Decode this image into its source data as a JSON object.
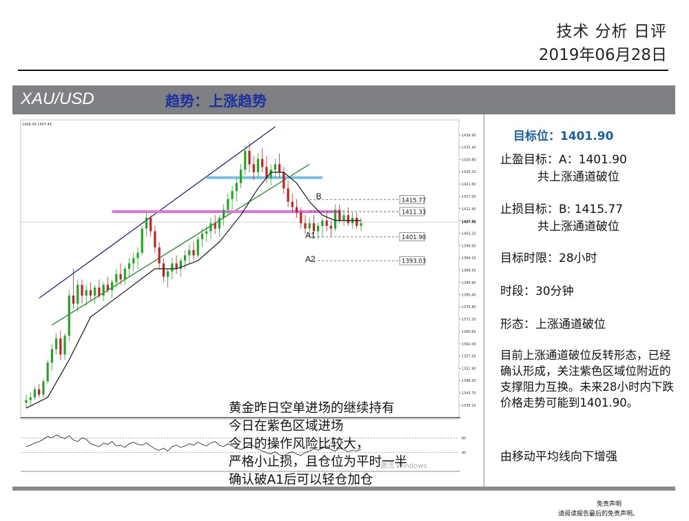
{
  "header": {
    "title": "技术 分析 日评",
    "date": "2019年06月28日"
  },
  "band": {
    "symbol": "XAU/USD",
    "trend": "趋势：上涨趋势"
  },
  "chart_data": {
    "type": "line",
    "symbol": "XAU/USD",
    "timeframe": "30分钟",
    "info_text": "1406.09 1407.45",
    "ylim": [
      1336,
      1444
    ],
    "y_ticks": [
      "1439.90",
      "1435.40",
      "1430.80",
      "1426.20",
      "1421.60",
      "1417.00",
      "1412.40",
      "1407.80",
      "1403.20",
      "1398.60",
      "1394.10",
      "1389.50",
      "1384.90",
      "1380.40",
      "1375.80",
      "1371.20",
      "1366.60",
      "1362.00",
      "1357.50",
      "1352.90",
      "1348.30",
      "1343.70",
      "1339.10"
    ],
    "current_price_label": "1407.45",
    "candles": [
      [
        0,
        1340,
        1343,
        1338,
        1341
      ],
      [
        1,
        1341,
        1344,
        1339,
        1342
      ],
      [
        2,
        1342,
        1346,
        1341,
        1345
      ],
      [
        3,
        1345,
        1347,
        1342,
        1343
      ],
      [
        4,
        1343,
        1349,
        1342,
        1348
      ],
      [
        5,
        1348,
        1356,
        1347,
        1355
      ],
      [
        6,
        1355,
        1362,
        1352,
        1360
      ],
      [
        7,
        1360,
        1366,
        1358,
        1364
      ],
      [
        8,
        1364,
        1367,
        1356,
        1358
      ],
      [
        9,
        1358,
        1366,
        1356,
        1365
      ],
      [
        10,
        1365,
        1382,
        1363,
        1380
      ],
      [
        11,
        1380,
        1390,
        1375,
        1377
      ],
      [
        12,
        1377,
        1386,
        1374,
        1384
      ],
      [
        13,
        1384,
        1386,
        1377,
        1380
      ],
      [
        14,
        1380,
        1384,
        1376,
        1382
      ],
      [
        15,
        1382,
        1385,
        1378,
        1380
      ],
      [
        16,
        1380,
        1384,
        1377,
        1383
      ],
      [
        17,
        1383,
        1386,
        1379,
        1380
      ],
      [
        18,
        1380,
        1385,
        1378,
        1384
      ],
      [
        19,
        1384,
        1387,
        1381,
        1382
      ],
      [
        20,
        1382,
        1386,
        1379,
        1385
      ],
      [
        21,
        1385,
        1390,
        1383,
        1388
      ],
      [
        22,
        1388,
        1392,
        1384,
        1386
      ],
      [
        23,
        1386,
        1391,
        1384,
        1390
      ],
      [
        24,
        1390,
        1394,
        1387,
        1392
      ],
      [
        25,
        1392,
        1396,
        1389,
        1394
      ],
      [
        26,
        1394,
        1398,
        1390,
        1396
      ],
      [
        27,
        1396,
        1406,
        1395,
        1405
      ],
      [
        28,
        1405,
        1411,
        1402,
        1409
      ],
      [
        29,
        1409,
        1410,
        1402,
        1404
      ],
      [
        30,
        1404,
        1406,
        1396,
        1398
      ],
      [
        31,
        1398,
        1400,
        1390,
        1392
      ],
      [
        32,
        1392,
        1394,
        1385,
        1387
      ],
      [
        33,
        1387,
        1390,
        1383,
        1389
      ],
      [
        34,
        1389,
        1394,
        1386,
        1392
      ],
      [
        35,
        1392,
        1395,
        1388,
        1390
      ],
      [
        36,
        1390,
        1394,
        1387,
        1393
      ],
      [
        37,
        1393,
        1397,
        1390,
        1395
      ],
      [
        38,
        1395,
        1399,
        1392,
        1397
      ],
      [
        39,
        1397,
        1400,
        1393,
        1395
      ],
      [
        40,
        1395,
        1402,
        1394,
        1401
      ],
      [
        41,
        1401,
        1405,
        1398,
        1403
      ],
      [
        42,
        1403,
        1406,
        1400,
        1404
      ],
      [
        43,
        1404,
        1409,
        1401,
        1407
      ],
      [
        44,
        1407,
        1410,
        1403,
        1405
      ],
      [
        45,
        1405,
        1410,
        1402,
        1409
      ],
      [
        46,
        1409,
        1414,
        1406,
        1412
      ],
      [
        47,
        1412,
        1418,
        1410,
        1416
      ],
      [
        48,
        1416,
        1421,
        1412,
        1419
      ],
      [
        49,
        1419,
        1424,
        1415,
        1422
      ],
      [
        50,
        1422,
        1429,
        1420,
        1427
      ],
      [
        51,
        1427,
        1436,
        1425,
        1434
      ],
      [
        52,
        1434,
        1437,
        1426,
        1429
      ],
      [
        53,
        1429,
        1432,
        1423,
        1426
      ],
      [
        54,
        1426,
        1433,
        1424,
        1431
      ],
      [
        55,
        1431,
        1435,
        1426,
        1428
      ],
      [
        56,
        1428,
        1432,
        1422,
        1424
      ],
      [
        57,
        1424,
        1429,
        1421,
        1427
      ],
      [
        58,
        1427,
        1431,
        1424,
        1429
      ],
      [
        59,
        1429,
        1433,
        1424,
        1426
      ],
      [
        60,
        1426,
        1428,
        1418,
        1420
      ],
      [
        61,
        1420,
        1423,
        1413,
        1415
      ],
      [
        62,
        1415,
        1418,
        1411,
        1413
      ],
      [
        63,
        1413,
        1416,
        1409,
        1411
      ],
      [
        64,
        1411,
        1413,
        1405,
        1407
      ],
      [
        65,
        1407,
        1410,
        1403,
        1405
      ],
      [
        66,
        1405,
        1409,
        1402,
        1407
      ],
      [
        67,
        1407,
        1410,
        1403,
        1404
      ],
      [
        68,
        1404,
        1407,
        1401,
        1406
      ],
      [
        69,
        1406,
        1409,
        1402,
        1408
      ],
      [
        70,
        1408,
        1411,
        1404,
        1406
      ],
      [
        71,
        1406,
        1408,
        1402,
        1405
      ],
      [
        72,
        1405,
        1414,
        1404,
        1412
      ],
      [
        73,
        1412,
        1414,
        1407,
        1408
      ],
      [
        74,
        1408,
        1412,
        1406,
        1410
      ],
      [
        75,
        1410,
        1413,
        1406,
        1407
      ],
      [
        76,
        1407,
        1411,
        1405,
        1409
      ],
      [
        77,
        1409,
        1411,
        1405,
        1406
      ],
      [
        78,
        1406,
        1409,
        1404,
        1407
      ]
    ],
    "ma_series": [
      [
        0,
        1338
      ],
      [
        5,
        1342
      ],
      [
        10,
        1356
      ],
      [
        15,
        1372
      ],
      [
        20,
        1378
      ],
      [
        25,
        1384
      ],
      [
        30,
        1390
      ],
      [
        35,
        1390
      ],
      [
        40,
        1393
      ],
      [
        45,
        1400
      ],
      [
        50,
        1410
      ],
      [
        54,
        1420
      ],
      [
        57,
        1426
      ],
      [
        60,
        1426
      ],
      [
        63,
        1422
      ],
      [
        66,
        1415
      ],
      [
        69,
        1410
      ],
      [
        72,
        1408
      ],
      [
        75,
        1408
      ],
      [
        78,
        1408
      ]
    ],
    "upper_channel": [
      [
        3,
        1379
      ],
      [
        58,
        1443
      ]
    ],
    "lower_channel": [
      [
        6,
        1369
      ],
      [
        66,
        1429
      ]
    ],
    "resistance_band_blue": {
      "value": 1424.0,
      "from": 42,
      "to": 69
    },
    "support_band_magenta": {
      "value": 1411.3,
      "from": 20,
      "to": 73
    },
    "levels": [
      {
        "name": "B",
        "value": 1415.77,
        "label": "1415.77"
      },
      {
        "name": "",
        "value": 1411.33,
        "label": "1411.33"
      },
      {
        "name": "A1",
        "value": 1401.9,
        "label": "1401.90"
      },
      {
        "name": "A2",
        "value": 1393.03,
        "label": "1393.03"
      }
    ],
    "oscillator": {
      "levels": [
        "60",
        "40"
      ],
      "values": [
        48,
        50,
        53,
        55,
        58,
        62,
        60,
        64,
        61,
        59,
        63,
        57,
        55,
        60,
        58,
        52,
        50,
        48,
        53,
        51,
        55,
        49,
        50,
        47,
        52,
        54,
        51,
        50,
        53,
        49,
        45,
        43,
        46,
        42,
        48,
        50,
        47,
        49,
        52,
        50,
        54,
        51,
        49,
        53,
        55,
        50,
        48,
        52,
        49,
        46,
        44,
        47,
        51,
        49,
        45,
        42,
        40,
        38,
        41,
        37,
        35,
        39,
        41,
        38,
        36,
        40,
        42,
        45,
        43,
        46,
        48,
        44,
        42,
        46,
        44,
        41,
        43,
        42,
        44
      ]
    },
    "watermark": "激活 Windows"
  },
  "chart_note": {
    "lines": [
      "黄金昨日空单进场的继续持有",
      "今日在紫色区域进场",
      "今日的操作风险比较大，",
      "严格小止损，且仓位为平时一半",
      "确认破A1后可以轻仓加仓"
    ]
  },
  "panel": {
    "target_label": "目标位：",
    "target_value": "1401.90",
    "tp_label": "止盈目标：A：1401.90",
    "tp_note": "共上涨通道破位",
    "sl_label": "止损目标：B: 1415.77",
    "sl_note": "共上涨通道破位",
    "time_limit": "目标时限：28小时",
    "period": "时段：30分钟",
    "pattern": "形态：上涨通道破位",
    "analysis": "目前上涨通道破位反转形态，已经确认形成，关注紫色区域位附近的支撑阻力互换。未来28小时内下跌价格走势可能到1401.90。",
    "ma_note": "由移动平均线向下增强"
  },
  "footer": {
    "disclaimer_title": "免责声明",
    "disclaimer_text": "请阅读报告最后的免责声明。"
  },
  "colors": {
    "band_bg": "#7f8083",
    "trend_text": "#1a2fa0",
    "target_text": "#1a5ea8",
    "upper_channel": "#1c1c8a",
    "lower_channel": "#1f8a2a",
    "resistance_band": "#74c0e8",
    "support_band": "#e070e0",
    "candle_up": "#1fa81f",
    "candle_down": "#c81e1e"
  }
}
